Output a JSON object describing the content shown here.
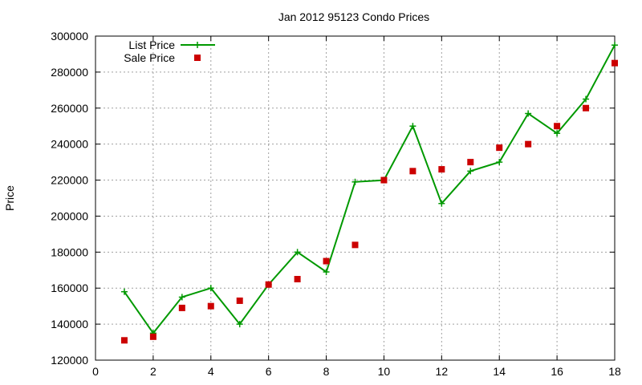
{
  "chart_data": {
    "type": "line",
    "title": "Jan 2012 95123 Condo Prices",
    "xlabel": "",
    "ylabel": "Price",
    "xlim": [
      0,
      18
    ],
    "ylim": [
      120000,
      300000
    ],
    "x_ticks": [
      0,
      2,
      4,
      6,
      8,
      10,
      12,
      14,
      16,
      18
    ],
    "y_ticks": [
      120000,
      140000,
      160000,
      180000,
      200000,
      220000,
      240000,
      260000,
      280000,
      300000
    ],
    "grid": true,
    "legend_position": "top-left",
    "series": [
      {
        "name": "List Price",
        "style": "line-with-plus-markers",
        "color": "#009900",
        "x": [
          1,
          2,
          3,
          4,
          5,
          6,
          7,
          8,
          9,
          10,
          11,
          12,
          13,
          14,
          15,
          16,
          17,
          18
        ],
        "values": [
          158000,
          135000,
          155000,
          160000,
          140000,
          162000,
          180000,
          169000,
          219000,
          220000,
          250000,
          207000,
          225000,
          230000,
          257000,
          246000,
          265000,
          295000
        ]
      },
      {
        "name": "Sale Price",
        "style": "square-points",
        "color": "#cc0000",
        "x": [
          1,
          2,
          3,
          4,
          5,
          6,
          7,
          8,
          9,
          10,
          11,
          12,
          13,
          14,
          15,
          16,
          17,
          18
        ],
        "values": [
          131000,
          133000,
          149000,
          150000,
          153000,
          162000,
          165000,
          175000,
          184000,
          220000,
          225000,
          226000,
          230000,
          238000,
          240000,
          250000,
          260000,
          285000
        ]
      }
    ]
  }
}
